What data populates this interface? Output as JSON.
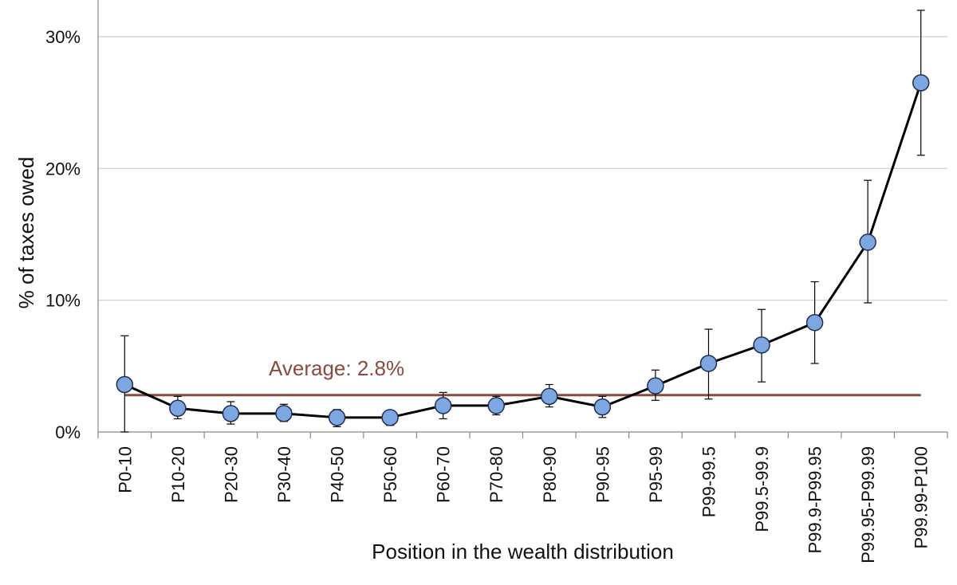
{
  "chart_data": {
    "type": "line",
    "title": "",
    "xlabel": "Position in the wealth distribution",
    "ylabel": "% of taxes owed",
    "ylim": [
      0,
      30
    ],
    "yticks": [
      0,
      10,
      20,
      30
    ],
    "ytick_labels": [
      "0%",
      "10%",
      "20%",
      "30%"
    ],
    "grid": true,
    "categories": [
      "P0-10",
      "P10-20",
      "P20-30",
      "P30-40",
      "P40-50",
      "P50-60",
      "P60-70",
      "P70-80",
      "P80-90",
      "P90-95",
      "P95-99",
      "P99-99.5",
      "P99.5-99.9",
      "P99.9-P99.95",
      "P99.95-P99.99",
      "P99.99-P100"
    ],
    "series": [
      {
        "values": [
          3.6,
          1.8,
          1.4,
          1.4,
          1.1,
          1.1,
          2.0,
          2.0,
          2.7,
          1.9,
          3.5,
          5.2,
          6.6,
          8.3,
          14.4,
          26.5
        ],
        "error_low": [
          0.0,
          1.0,
          0.6,
          0.8,
          0.4,
          0.5,
          1.0,
          1.3,
          1.9,
          1.1,
          2.4,
          2.5,
          3.8,
          5.2,
          9.8,
          21.0
        ],
        "error_high": [
          7.3,
          2.7,
          2.3,
          2.1,
          1.7,
          1.5,
          3.0,
          2.7,
          3.6,
          2.7,
          4.7,
          7.8,
          9.3,
          11.4,
          19.1,
          32.0
        ]
      }
    ],
    "reference_line": {
      "value": 2.8,
      "label": "Average: 2.8%"
    },
    "colors": {
      "marker_fill": "#7ea6e0",
      "marker_stroke": "#1e2f52",
      "line": "#000000",
      "average": "#8b4a3f",
      "grid": "#cccccc"
    }
  }
}
